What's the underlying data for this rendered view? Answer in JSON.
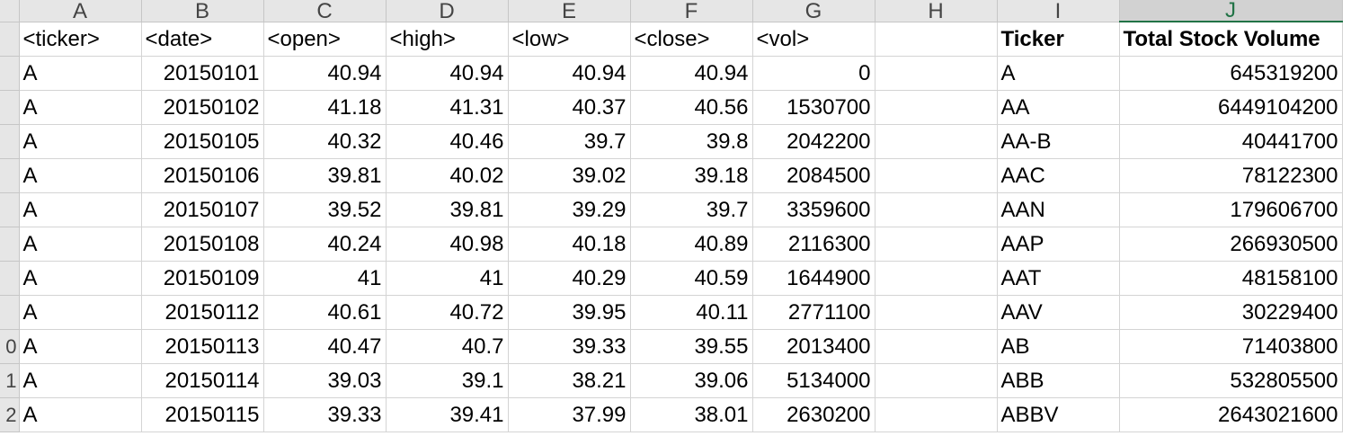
{
  "columns": [
    "A",
    "B",
    "C",
    "D",
    "E",
    "F",
    "G",
    "H",
    "I",
    "J"
  ],
  "selected_column": "J",
  "rows": [
    {
      "rownum": "",
      "cells": [
        "<ticker>",
        "<date>",
        "<open>",
        "<high>",
        "<low>",
        "<close>",
        "<vol>",
        "",
        "Ticker",
        "Total Stock Volume"
      ]
    },
    {
      "rownum": "",
      "cells": [
        "A",
        "20150101",
        "40.94",
        "40.94",
        "40.94",
        "40.94",
        "0",
        "",
        "A",
        "645319200"
      ]
    },
    {
      "rownum": "",
      "cells": [
        "A",
        "20150102",
        "41.18",
        "41.31",
        "40.37",
        "40.56",
        "1530700",
        "",
        "AA",
        "6449104200"
      ]
    },
    {
      "rownum": "",
      "cells": [
        "A",
        "20150105",
        "40.32",
        "40.46",
        "39.7",
        "39.8",
        "2042200",
        "",
        "AA-B",
        "40441700"
      ]
    },
    {
      "rownum": "",
      "cells": [
        "A",
        "20150106",
        "39.81",
        "40.02",
        "39.02",
        "39.18",
        "2084500",
        "",
        "AAC",
        "78122300"
      ]
    },
    {
      "rownum": "",
      "cells": [
        "A",
        "20150107",
        "39.52",
        "39.81",
        "39.29",
        "39.7",
        "3359600",
        "",
        "AAN",
        "179606700"
      ]
    },
    {
      "rownum": "",
      "cells": [
        "A",
        "20150108",
        "40.24",
        "40.98",
        "40.18",
        "40.89",
        "2116300",
        "",
        "AAP",
        "266930500"
      ]
    },
    {
      "rownum": "",
      "cells": [
        "A",
        "20150109",
        "41",
        "41",
        "40.29",
        "40.59",
        "1644900",
        "",
        "AAT",
        "48158100"
      ]
    },
    {
      "rownum": "",
      "cells": [
        "A",
        "20150112",
        "40.61",
        "40.72",
        "39.95",
        "40.11",
        "2771100",
        "",
        "AAV",
        "30229400"
      ]
    },
    {
      "rownum": "0",
      "cells": [
        "A",
        "20150113",
        "40.47",
        "40.7",
        "39.33",
        "39.55",
        "2013400",
        "",
        "AB",
        "71403800"
      ]
    },
    {
      "rownum": "1",
      "cells": [
        "A",
        "20150114",
        "39.03",
        "39.1",
        "38.21",
        "39.06",
        "5134000",
        "",
        "ABB",
        "532805500"
      ]
    },
    {
      "rownum": "2",
      "cells": [
        "A",
        "20150115",
        "39.33",
        "39.41",
        "37.99",
        "38.01",
        "2630200",
        "",
        "ABBV",
        "2643021600"
      ]
    }
  ]
}
